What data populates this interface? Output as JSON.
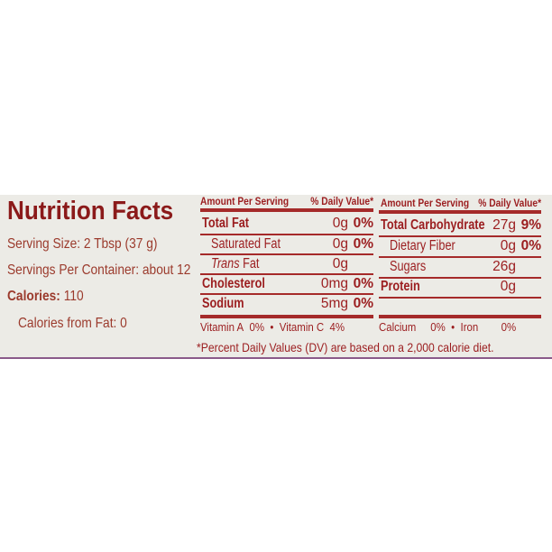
{
  "title": "Nutrition Facts",
  "serving_size": "Serving Size: 2 Tbsp (37 g)",
  "servings_per_container": "Servings Per Container: about 12",
  "calories_label": "Calories:",
  "calories_value": "110",
  "calories_from_fat": "Calories from Fat: 0",
  "header": {
    "amount": "Amount Per Serving",
    "dv": "% Daily Value*"
  },
  "left_rows": [
    {
      "name": "Total Fat",
      "amount": "0g",
      "dv": "0%"
    },
    {
      "name": "Saturated Fat",
      "amount": "0g",
      "dv": "0%"
    },
    {
      "name": "Trans",
      "name_suffix": " Fat",
      "amount": "0g",
      "dv": ""
    },
    {
      "name": "Cholesterol",
      "amount": "0mg",
      "dv": "0%"
    },
    {
      "name": "Sodium",
      "amount": "5mg",
      "dv": "0%"
    }
  ],
  "right_rows": [
    {
      "name": "Total Carbohydrate",
      "amount": "27g",
      "dv": "9%"
    },
    {
      "name": "Dietary Fiber",
      "amount": "0g",
      "dv": "0%"
    },
    {
      "name": "Sugars",
      "amount": "26g",
      "dv": ""
    },
    {
      "name": "Protein",
      "amount": "0g",
      "dv": ""
    }
  ],
  "vitamins": {
    "vitA": "Vitamin A",
    "vitA_dv": "0%",
    "bullet": "•",
    "vitC": "Vitamin C",
    "vitC_dv": "4%",
    "calcium": "Calcium",
    "calcium_dv": "0%",
    "iron": "Iron",
    "iron_dv": "0%"
  },
  "footnote": "*Percent Daily Values (DV) are based on a 2,000 calorie diet.",
  "colors": {
    "text": "#9b1d1f",
    "background": "#ecebe6"
  }
}
